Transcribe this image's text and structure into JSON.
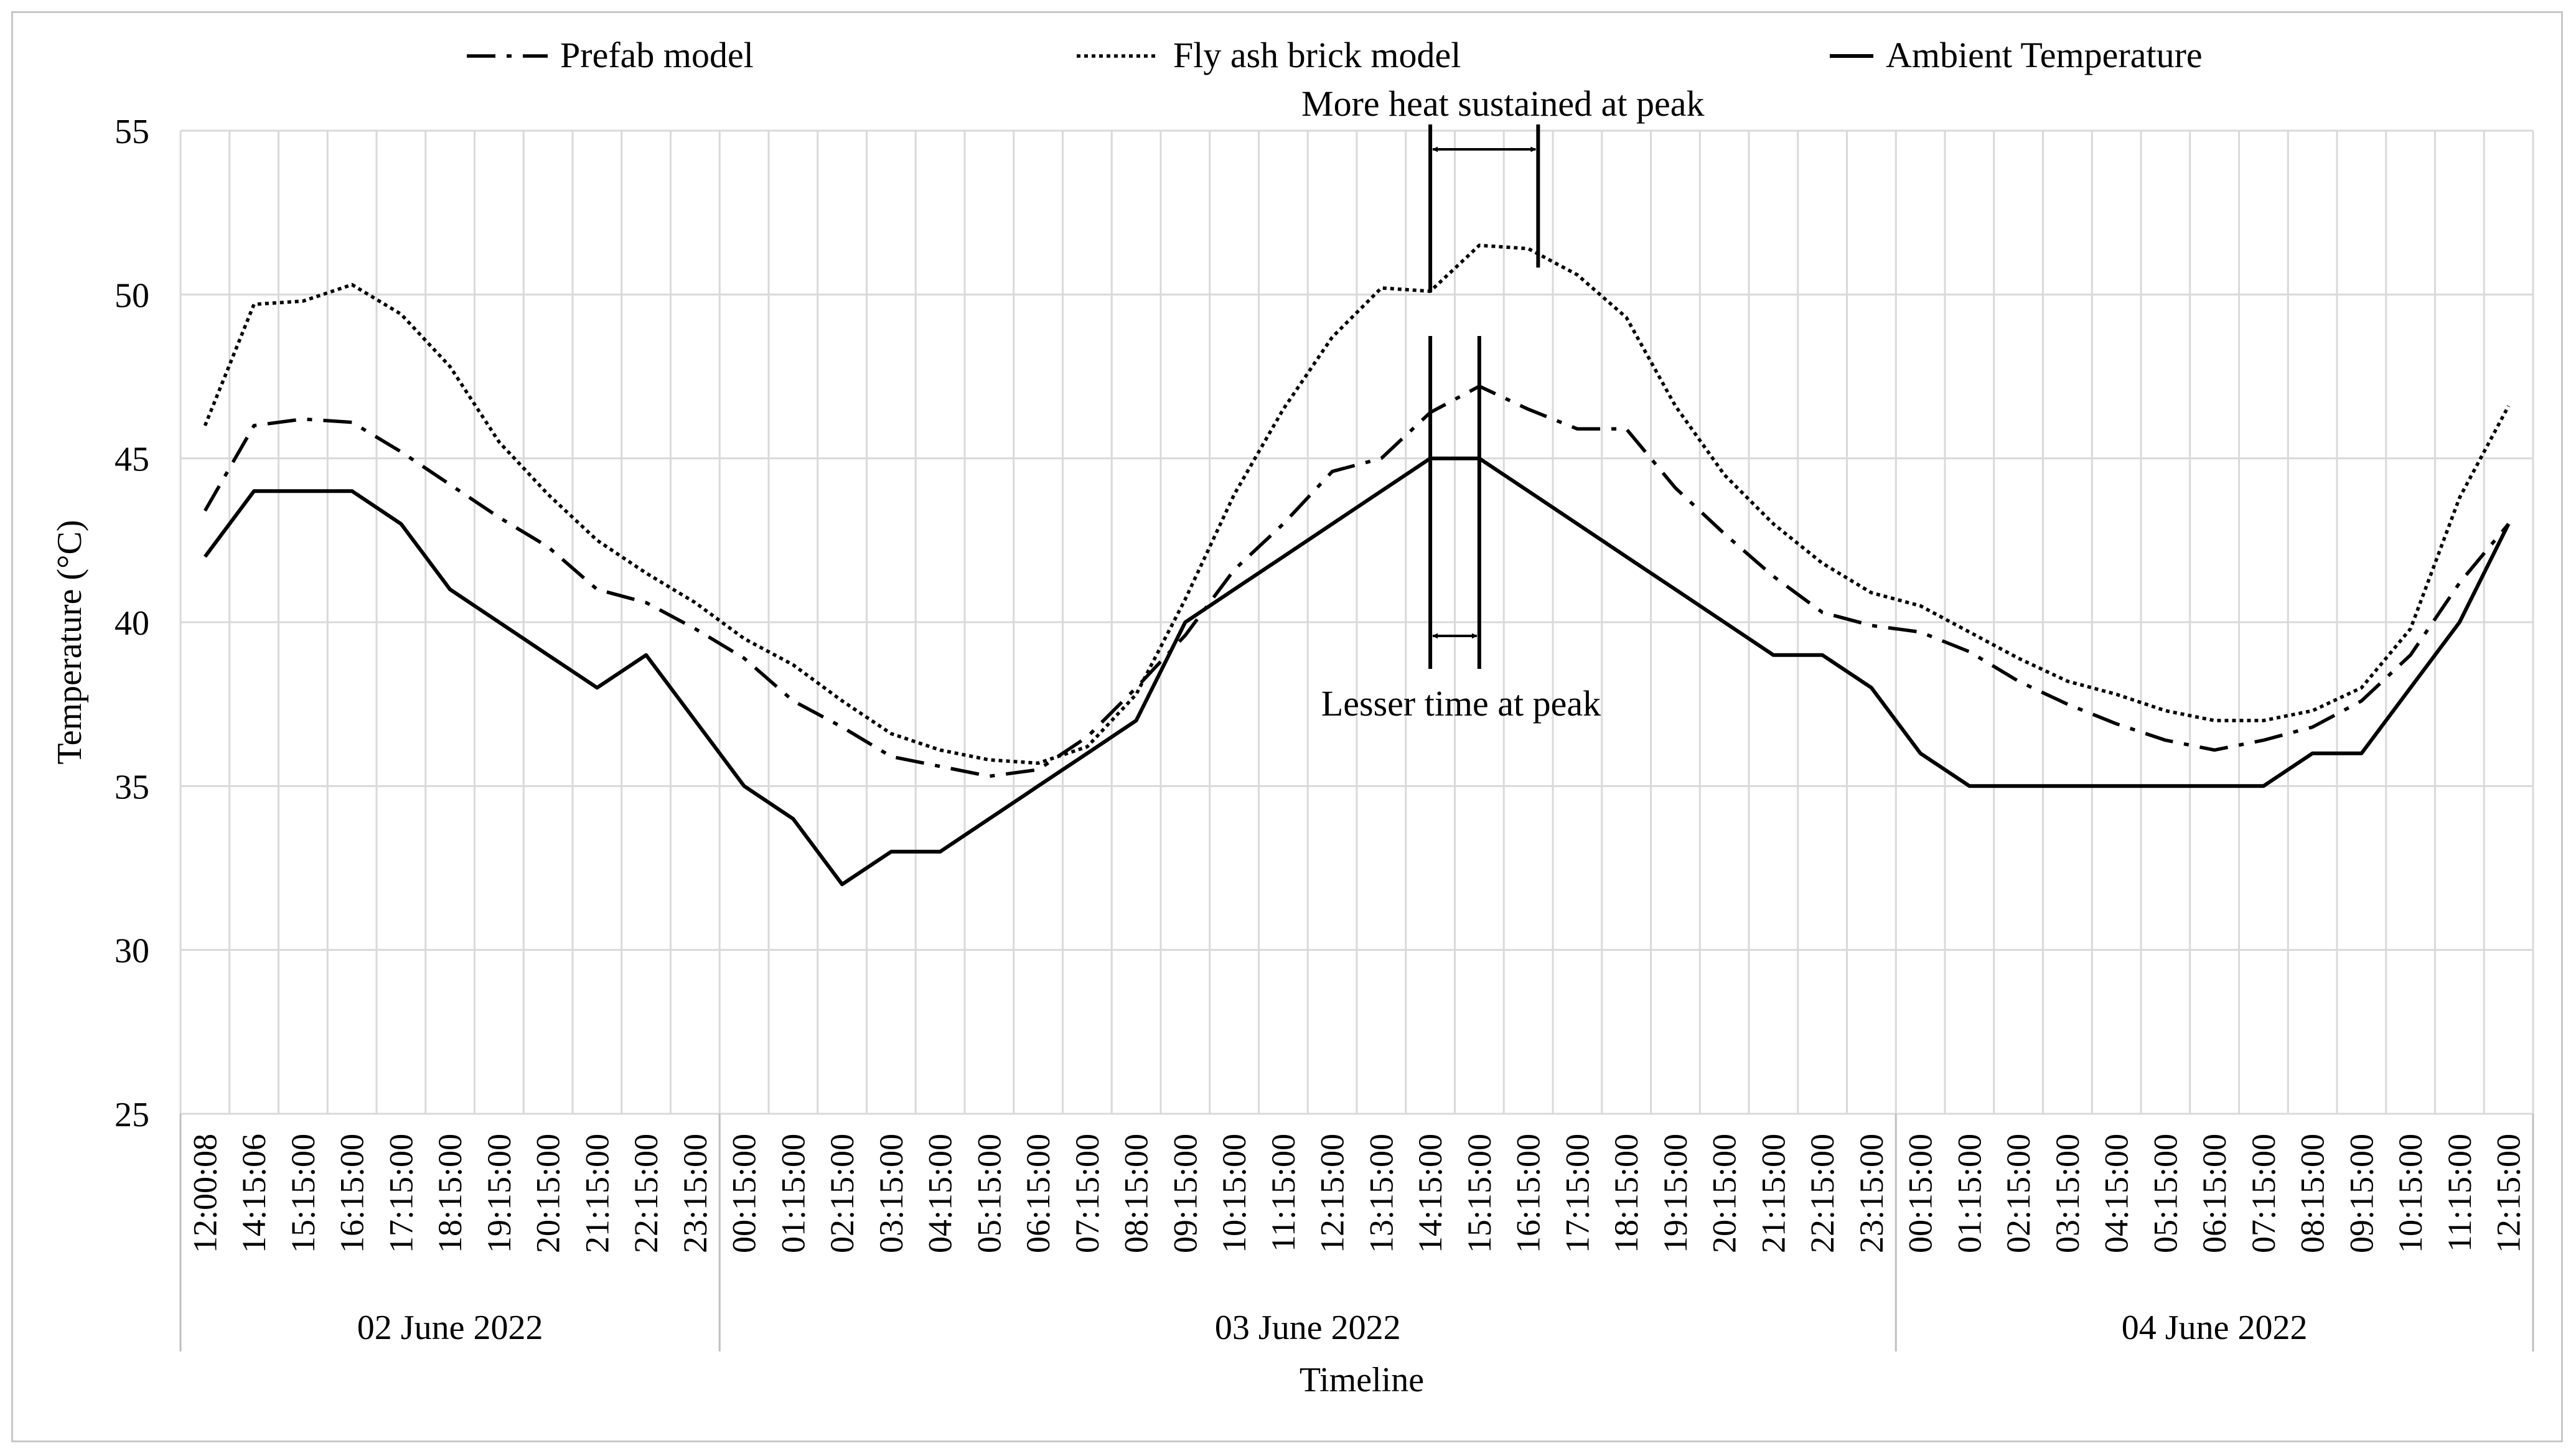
{
  "chart_data": {
    "type": "line",
    "title": "",
    "xlabel": "Timeline",
    "ylabel": "Temperature (°C)",
    "ylim": [
      25,
      55
    ],
    "yticks": [
      "25",
      "30",
      "35",
      "40",
      "45",
      "50",
      "55"
    ],
    "grid": "vertical and horizontal",
    "legend_position": "top",
    "categories": [
      "12:00:08",
      "14:15:06",
      "15:15:00",
      "16:15:00",
      "17:15:00",
      "18:15:00",
      "19:15:00",
      "20:15:00",
      "21:15:00",
      "22:15:00",
      "23:15:00",
      "00:15:00",
      "01:15:00",
      "02:15:00",
      "03:15:00",
      "04:15:00",
      "05:15:00",
      "06:15:00",
      "07:15:00",
      "08:15:00",
      "09:15:00",
      "10:15:00",
      "11:15:00",
      "12:15:00",
      "13:15:00",
      "14:15:00",
      "15:15:00",
      "16:15:00",
      "17:15:00",
      "18:15:00",
      "19:15:00",
      "20:15:00",
      "21:15:00",
      "22:15:00",
      "23:15:00",
      "00:15:00",
      "01:15:00",
      "02:15:00",
      "03:15:00",
      "04:15:00",
      "05:15:00",
      "06:15:00",
      "07:15:00",
      "08:15:00",
      "09:15:00",
      "10:15:00",
      "11:15:00",
      "12:15:00"
    ],
    "date_groups": [
      {
        "label": "02 June 2022",
        "start": 0,
        "end": 10
      },
      {
        "label": "03 June 2022",
        "start": 11,
        "end": 34
      },
      {
        "label": "04 June 2022",
        "start": 35,
        "end": 47
      }
    ],
    "series": [
      {
        "name": "Prefab model",
        "style": "dashdot",
        "values": [
          43.4,
          46.0,
          46.2,
          46.1,
          45.2,
          44.2,
          43.2,
          42.3,
          41.0,
          40.6,
          39.8,
          38.9,
          37.6,
          36.8,
          35.9,
          35.6,
          35.3,
          35.5,
          36.5,
          38.0,
          39.6,
          41.6,
          43.0,
          44.6,
          45.0,
          46.4,
          47.2,
          46.5,
          45.9,
          45.9,
          44.1,
          42.7,
          41.4,
          40.3,
          39.9,
          39.7,
          39.1,
          38.2,
          37.5,
          36.9,
          36.4,
          36.1,
          36.4,
          36.8,
          37.6,
          39.0,
          41.2,
          43.0
        ]
      },
      {
        "name": "Fly ash brick model",
        "style": "dotted",
        "values": [
          46.0,
          49.7,
          49.8,
          50.3,
          49.4,
          47.8,
          45.5,
          43.9,
          42.5,
          41.5,
          40.6,
          39.5,
          38.7,
          37.6,
          36.6,
          36.1,
          35.8,
          35.7,
          36.2,
          37.8,
          40.7,
          43.9,
          46.5,
          48.7,
          50.2,
          50.1,
          51.5,
          51.4,
          50.6,
          49.3,
          46.6,
          44.5,
          43.0,
          41.8,
          40.9,
          40.5,
          39.7,
          38.9,
          38.2,
          37.8,
          37.3,
          37.0,
          37.0,
          37.3,
          38.0,
          39.8,
          43.8,
          46.6
        ]
      },
      {
        "name": "Ambient Temperature",
        "style": "solid",
        "values": [
          42.0,
          44.0,
          44.0,
          44.0,
          43.0,
          41.0,
          40.0,
          39.0,
          38.0,
          39.0,
          37.0,
          35.0,
          34.0,
          32.0,
          33.0,
          33.0,
          34.0,
          35.0,
          36.0,
          37.0,
          40.0,
          41.0,
          42.0,
          43.0,
          44.0,
          45.0,
          45.0,
          44.0,
          43.0,
          42.0,
          41.0,
          40.0,
          39.0,
          39.0,
          38.0,
          36.0,
          35.0,
          35.0,
          35.0,
          35.0,
          35.0,
          35.0,
          35.0,
          36.0,
          36.0,
          38.0,
          40.0,
          43.0
        ]
      }
    ],
    "annotations": [
      {
        "text": "More heat sustained at peak",
        "from_index": 25,
        "to_index": 27.2
      },
      {
        "text": "Lesser time at peak",
        "from_index": 25,
        "to_index": 26
      }
    ]
  }
}
